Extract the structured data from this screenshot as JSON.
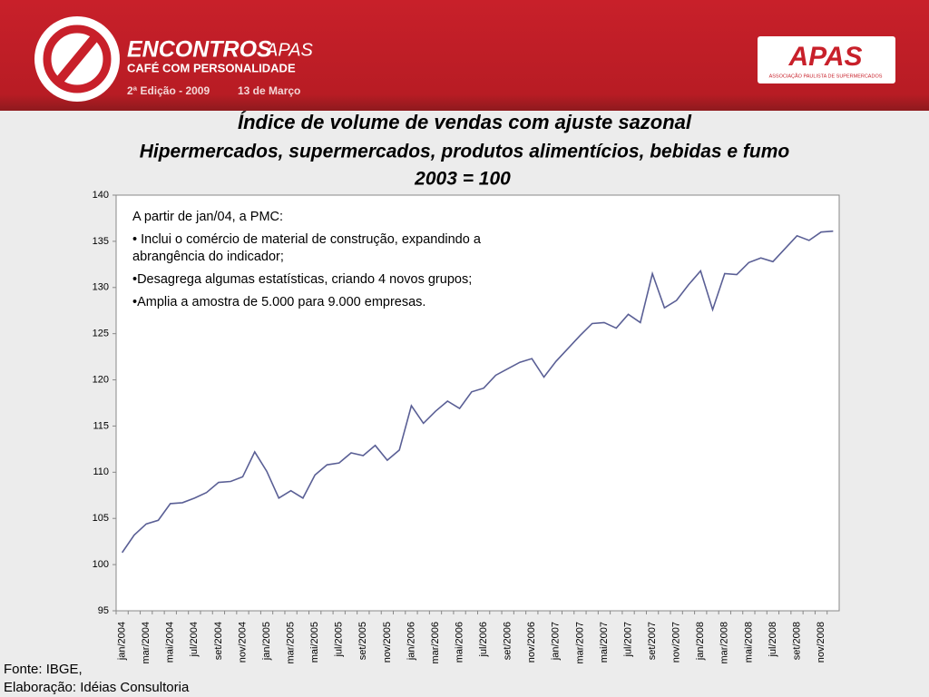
{
  "header": {
    "event": "ENCONTROS",
    "event_suffix": "APAS",
    "tagline": "CAFÉ COM PERSONALIDADE",
    "edition": "2ª Edição - 2009",
    "date": "13 de Março",
    "logo": "APAS",
    "logo_caption": "ASSOCIAÇÃO PAULISTA DE SUPERMERCADOS"
  },
  "chart_data": {
    "type": "line",
    "title": "Índice de volume de vendas com ajuste sazonal",
    "subtitle": "Hipermercados, supermercados, produtos alimentícios, bebidas e fumo",
    "subtitle2": "2003 = 100",
    "categories": [
      "jan/2004",
      null,
      "mar/2004",
      null,
      "mai/2004",
      null,
      "jul/2004",
      null,
      "set/2004",
      null,
      "nov/2004",
      null,
      "jan/2005",
      null,
      "mar/2005",
      null,
      "mai/2005",
      null,
      "jul/2005",
      null,
      "set/2005",
      null,
      "nov/2005",
      null,
      "jan/2006",
      null,
      "mar/2006",
      null,
      "mai/2006",
      null,
      "jul/2006",
      null,
      "set/2006",
      null,
      "nov/2006",
      null,
      "jan/2007",
      null,
      "mar/2007",
      null,
      "mai/2007",
      null,
      "jul/2007",
      null,
      "set/2007",
      null,
      "nov/2007",
      null,
      "jan/2008",
      null,
      "mar/2008",
      null,
      "mai/2008",
      null,
      "jul/2008",
      null,
      "set/2008",
      null,
      "nov/2008",
      null
    ],
    "series": [
      {
        "color": "#5a5f95",
        "values": [
          101.3,
          103.2,
          104.4,
          104.8,
          106.6,
          106.7,
          107.2,
          107.8,
          108.9,
          109.0,
          109.5,
          112.2,
          110.1,
          107.2,
          108.0,
          107.2,
          109.7,
          110.8,
          111.0,
          112.1,
          111.8,
          112.9,
          111.3,
          112.4,
          117.2,
          115.3,
          116.6,
          117.7,
          116.9,
          118.7,
          119.1,
          120.5,
          121.2,
          121.9,
          122.3,
          120.3,
          122.0,
          123.4,
          124.8,
          126.1,
          126.2,
          125.6,
          127.1,
          126.2,
          131.5,
          127.8,
          128.6,
          130.3,
          131.8,
          127.6,
          131.5,
          131.4,
          132.7,
          133.2,
          132.8,
          134.2,
          135.6,
          135.1,
          136.0,
          136.1
        ]
      }
    ],
    "ylim": [
      95,
      140
    ],
    "yticks": [
      95,
      100,
      105,
      110,
      115,
      120,
      125,
      130,
      135,
      140
    ],
    "grid": false,
    "annotations": [
      "A partir de jan/04, a PMC:",
      "• Inclui o comércio de material de construção, expandindo a abrangência do indicador;",
      "•Desagrega algumas estatísticas, criando 4 novos grupos;",
      "•Amplia a amostra de 5.000 para 9.000 empresas."
    ]
  },
  "footer": [
    "Fonte: IBGE,",
    "Elaboração: Idéias Consultoria"
  ]
}
